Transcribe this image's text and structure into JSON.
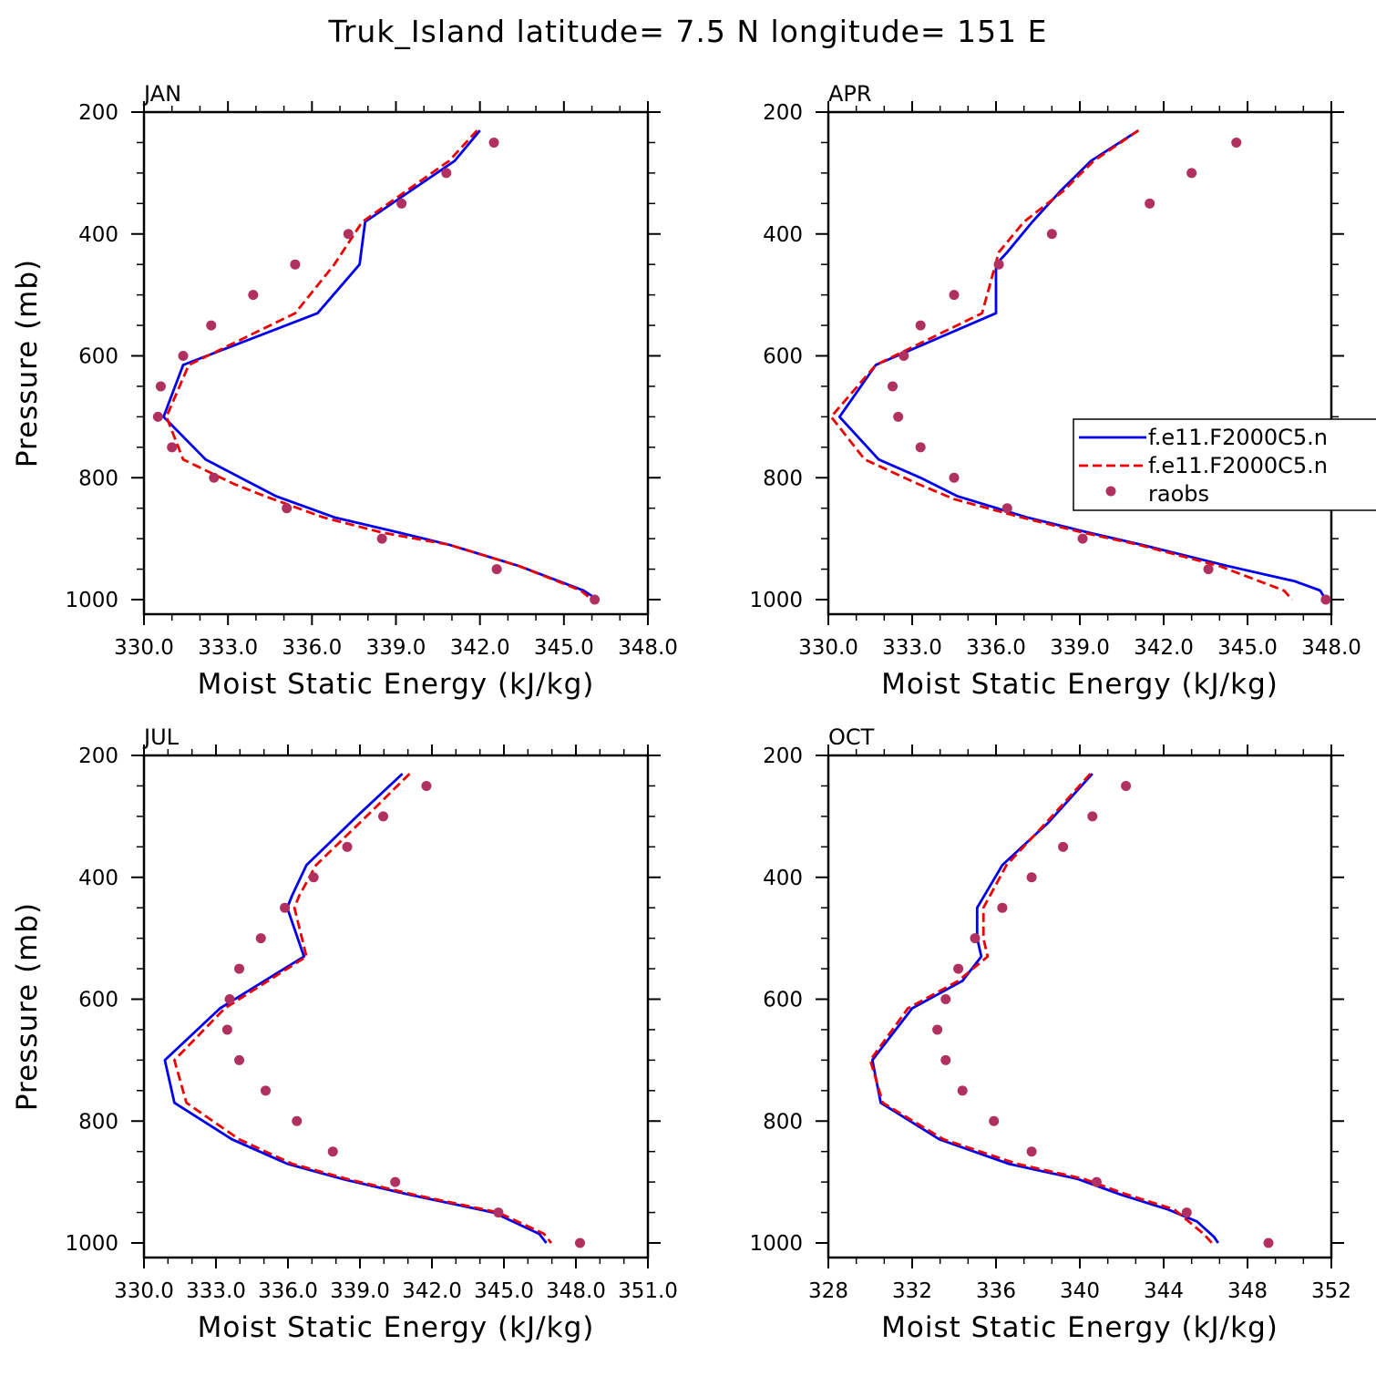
{
  "figure_title": "Truk_Island  latitude= 7.5 N longitude= 151 E",
  "colors": {
    "series_1": "#0000ee",
    "series_2": "#ee0000",
    "raobs": "#b03060"
  },
  "legend": {
    "placement": "right side of APR panel, clipped at figure edge",
    "entries": [
      {
        "label": "f.e11.F2000C5.n",
        "style": "solid",
        "color": "#0000ee"
      },
      {
        "label": "f.e11.F2000C5.n",
        "style": "dashed",
        "color": "#ee0000"
      },
      {
        "label": "raobs",
        "style": "dots",
        "color": "#b03060"
      }
    ]
  },
  "chart_data": [
    {
      "type": "line",
      "panel_title": "JAN",
      "xlabel": "Moist Static Energy (kJ/kg)",
      "ylabel": "Pressure (mb)",
      "xlim": [
        330,
        348
      ],
      "ylim": [
        1000,
        200
      ],
      "xticks": [
        330,
        333,
        336,
        339,
        342,
        345,
        348
      ],
      "xtick_labels": [
        "330.0",
        "333.0",
        "336.0",
        "339.0",
        "342.0",
        "345.0",
        "348.0"
      ],
      "yticks": [
        200,
        400,
        600,
        800,
        1000
      ],
      "ytick_labels": [
        "200",
        "400",
        "600",
        "800",
        "1000"
      ],
      "grid": false,
      "series": [
        {
          "style": "solid",
          "color": "#0000ee",
          "x": [
            342.0,
            341.1,
            337.9,
            337.7,
            336.2,
            331.4,
            330.7,
            332.2,
            334.7,
            336.8,
            339.1,
            340.9,
            343.4,
            345.7,
            346.2,
            346.2
          ],
          "y": [
            230,
            280,
            380,
            450,
            530,
            615,
            700,
            770,
            830,
            865,
            890,
            910,
            945,
            985,
            1000,
            1000
          ]
        },
        {
          "style": "dashed",
          "color": "#ee0000",
          "x": [
            341.9,
            340.9,
            337.8,
            336.8,
            335.4,
            331.6,
            330.8,
            331.4,
            333.2,
            334.3,
            336.4,
            338.5,
            340.9,
            343.4,
            345.6,
            346.0
          ],
          "y": [
            230,
            280,
            380,
            450,
            530,
            615,
            700,
            770,
            810,
            830,
            865,
            890,
            910,
            945,
            985,
            1000
          ]
        },
        {
          "style": "dots",
          "color": "#b03060",
          "x": [
            342.5,
            340.8,
            339.2,
            337.3,
            335.4,
            333.9,
            332.4,
            331.4,
            330.6,
            330.5,
            331.0,
            332.5,
            335.1,
            338.5,
            342.6,
            346.1
          ],
          "y": [
            250,
            300,
            350,
            400,
            450,
            500,
            550,
            600,
            650,
            700,
            750,
            800,
            850,
            900,
            950,
            1000
          ]
        }
      ]
    },
    {
      "type": "line",
      "panel_title": "APR",
      "xlabel": "Moist Static Energy (kJ/kg)",
      "ylabel": "",
      "xlim": [
        330,
        348
      ],
      "ylim": [
        1000,
        200
      ],
      "xticks": [
        330,
        333,
        336,
        339,
        342,
        345,
        348
      ],
      "xtick_labels": [
        "330.0",
        "333.0",
        "336.0",
        "339.0",
        "342.0",
        "345.0",
        "348.0"
      ],
      "yticks": [
        200,
        400,
        600,
        800,
        1000
      ],
      "ytick_labels": [
        "200",
        "400",
        "600",
        "800",
        "1000"
      ],
      "grid": false,
      "series": [
        {
          "style": "solid",
          "color": "#0000ee",
          "x": [
            341.1,
            339.4,
            338.3,
            337.3,
            336.4,
            336.0,
            336.0,
            331.7,
            330.4,
            331.8,
            333.3,
            334.6,
            337.1,
            339.3,
            341.2,
            344.3,
            346.7,
            347.6,
            347.8
          ],
          "y": [
            230,
            280,
            330,
            380,
            430,
            450,
            530,
            615,
            700,
            770,
            800,
            830,
            865,
            890,
            910,
            945,
            970,
            985,
            1000
          ]
        },
        {
          "style": "dashed",
          "color": "#ee0000",
          "x": [
            341.1,
            339.5,
            338.4,
            337.0,
            336.1,
            335.5,
            331.7,
            330.1,
            331.3,
            333.2,
            334.5,
            336.9,
            339.1,
            341.1,
            344.0,
            346.3,
            346.6
          ],
          "y": [
            230,
            280,
            330,
            380,
            430,
            530,
            615,
            700,
            770,
            810,
            835,
            865,
            890,
            910,
            945,
            985,
            1000
          ]
        },
        {
          "style": "dots",
          "color": "#b03060",
          "x": [
            344.6,
            343.0,
            341.5,
            338.0,
            336.1,
            334.5,
            333.3,
            332.7,
            332.3,
            332.5,
            333.3,
            334.5,
            336.4,
            339.1,
            343.6,
            347.8
          ],
          "y": [
            250,
            300,
            350,
            400,
            450,
            500,
            550,
            600,
            650,
            700,
            750,
            800,
            850,
            900,
            950,
            1000
          ]
        }
      ]
    },
    {
      "type": "line",
      "panel_title": "JUL",
      "xlabel": "Moist Static Energy (kJ/kg)",
      "ylabel": "Pressure (mb)",
      "xlim": [
        330.03,
        351.03
      ],
      "ylim": [
        1000,
        200
      ],
      "xticks": [
        330.03,
        333.03,
        336.03,
        339.03,
        342.03,
        345.03,
        348.03,
        351.03
      ],
      "xtick_labels": [
        "330.0",
        "333.0",
        "336.0",
        "339.0",
        "342.0",
        "345.0",
        "348.0",
        "351.0"
      ],
      "yticks": [
        200,
        400,
        600,
        800,
        1000
      ],
      "ytick_labels": [
        "200",
        "400",
        "600",
        "800",
        "1000"
      ],
      "grid": false,
      "series": [
        {
          "style": "solid",
          "color": "#0000ee",
          "x": [
            340.8,
            338.9,
            336.8,
            336.2,
            336.0,
            336.7,
            333.2,
            330.9,
            331.3,
            333.7,
            336.0,
            338.3,
            341.0,
            344.6,
            346.5,
            346.8
          ],
          "y": [
            230,
            300,
            380,
            430,
            450,
            530,
            615,
            700,
            770,
            830,
            870,
            895,
            920,
            950,
            985,
            1000
          ]
        },
        {
          "style": "dashed",
          "color": "#ee0000",
          "x": [
            341.1,
            339.3,
            337.2,
            336.5,
            336.3,
            336.8,
            333.4,
            331.3,
            331.8,
            334.0,
            336.2,
            338.5,
            341.2,
            344.8,
            346.7,
            347.0
          ],
          "y": [
            230,
            300,
            380,
            430,
            450,
            530,
            615,
            700,
            770,
            830,
            870,
            895,
            920,
            950,
            985,
            1000
          ]
        },
        {
          "style": "dots",
          "color": "#b03060",
          "x": [
            341.8,
            340.0,
            338.5,
            337.1,
            335.9,
            334.9,
            334.0,
            333.6,
            333.5,
            334.0,
            335.1,
            336.4,
            337.9,
            340.5,
            344.8,
            348.2
          ],
          "y": [
            250,
            300,
            350,
            400,
            450,
            500,
            550,
            600,
            650,
            700,
            750,
            800,
            850,
            900,
            950,
            1000
          ]
        }
      ]
    },
    {
      "type": "line",
      "panel_title": "OCT",
      "xlabel": "Moist Static Energy (kJ/kg)",
      "ylabel": "",
      "xlim": [
        328,
        352
      ],
      "ylim": [
        1000,
        200
      ],
      "xticks": [
        328,
        332,
        336,
        340,
        344,
        348,
        352
      ],
      "xtick_labels": [
        "328",
        "332",
        "336",
        "340",
        "344",
        "348",
        "352"
      ],
      "yticks": [
        200,
        400,
        600,
        800,
        1000
      ],
      "ytick_labels": [
        "200",
        "400",
        "600",
        "800",
        "1000"
      ],
      "grid": false,
      "series": [
        {
          "style": "solid",
          "color": "#0000ee",
          "x": [
            340.6,
            338.5,
            336.3,
            335.1,
            335.1,
            335.3,
            334.4,
            332.0,
            330.1,
            330.5,
            333.3,
            336.6,
            339.9,
            341.9,
            344.2,
            345.6,
            346.4,
            346.6
          ],
          "y": [
            230,
            310,
            380,
            450,
            500,
            530,
            570,
            615,
            700,
            770,
            830,
            870,
            895,
            920,
            945,
            965,
            990,
            1000
          ]
        },
        {
          "style": "dashed",
          "color": "#ee0000",
          "x": [
            340.5,
            338.4,
            336.5,
            335.4,
            335.4,
            335.6,
            334.2,
            331.8,
            330.0,
            330.6,
            333.5,
            337.0,
            340.2,
            342.2,
            344.5,
            345.9,
            346.3
          ],
          "y": [
            230,
            310,
            380,
            450,
            500,
            530,
            570,
            615,
            700,
            770,
            830,
            870,
            895,
            920,
            945,
            985,
            1000
          ]
        },
        {
          "style": "dots",
          "color": "#b03060",
          "x": [
            342.2,
            340.6,
            339.2,
            337.7,
            336.3,
            335.0,
            334.2,
            333.6,
            333.2,
            333.6,
            334.4,
            335.9,
            337.7,
            340.8,
            345.1,
            349.0
          ],
          "y": [
            250,
            300,
            350,
            400,
            450,
            500,
            550,
            600,
            650,
            700,
            750,
            800,
            850,
            900,
            950,
            1000
          ]
        }
      ]
    }
  ]
}
